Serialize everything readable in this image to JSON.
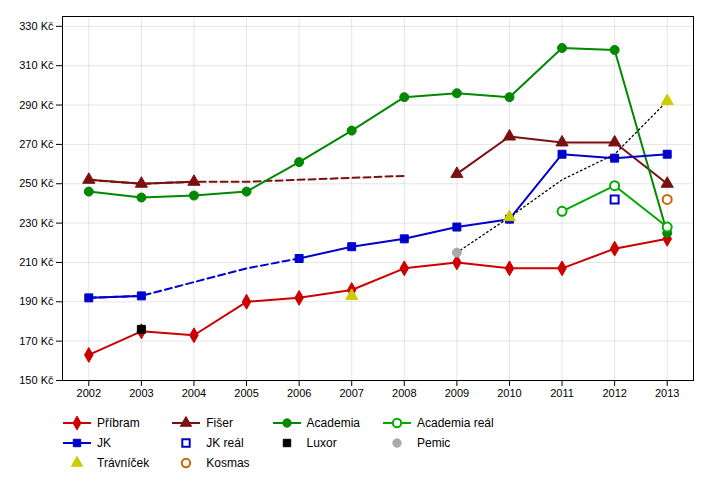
{
  "chart_data": {
    "type": "line",
    "x": [
      2002,
      2003,
      2004,
      2005,
      2006,
      2007,
      2008,
      2009,
      2010,
      2011,
      2012,
      2013
    ],
    "xlim": [
      2001.5,
      2013.5
    ],
    "xticks": [
      2002,
      2003,
      2004,
      2005,
      2006,
      2007,
      2008,
      2009,
      2010,
      2011,
      2012,
      2013
    ],
    "ylim": [
      150,
      335
    ],
    "yticks": [
      {
        "value": 150,
        "label": "150 Kč"
      },
      {
        "value": 170,
        "label": "170 Kč"
      },
      {
        "value": 190,
        "label": "190 Kč"
      },
      {
        "value": 210,
        "label": "210 Kč"
      },
      {
        "value": 230,
        "label": "230 Kč"
      },
      {
        "value": 250,
        "label": "250 Kč"
      },
      {
        "value": 270,
        "label": "270 Kč"
      },
      {
        "value": 290,
        "label": "290 Kč"
      },
      {
        "value": 310,
        "label": "310 Kč"
      },
      {
        "value": 330,
        "label": "330 Kč"
      }
    ],
    "grid": true,
    "legend": "bottom",
    "series": [
      {
        "name": "Příbram",
        "color": "#cc0000",
        "line_style": "solid",
        "marker": "diamond",
        "values": [
          163,
          175,
          173,
          190,
          192,
          196,
          207,
          210,
          207,
          207,
          217,
          222
        ]
      },
      {
        "color": "#7b1010",
        "line_style": "dashed",
        "marker": "none",
        "values": [
          252,
          250,
          251,
          251,
          252,
          253,
          254,
          null,
          null,
          null,
          null,
          null
        ]
      },
      {
        "name": "Fišer",
        "color": "#7b1010",
        "line_style": "solid",
        "marker": "triangle",
        "values": [
          252,
          250,
          251,
          null,
          null,
          null,
          null,
          255,
          274,
          271,
          271,
          250
        ]
      },
      {
        "name": "Academia",
        "color": "#008800",
        "line_style": "solid",
        "marker": "circle",
        "values": [
          246,
          243,
          244,
          246,
          261,
          277,
          294,
          296,
          294,
          319,
          318,
          225
        ]
      },
      {
        "name": "Academia reál",
        "color": "#00aa00",
        "line_style": "solid",
        "marker": "circle-open",
        "values": [
          null,
          null,
          null,
          null,
          null,
          null,
          null,
          null,
          null,
          236,
          249,
          228
        ]
      },
      {
        "color": "#0000cc",
        "line_style": "dashed",
        "marker": "none",
        "values": [
          192,
          193,
          200,
          207,
          212,
          null,
          null,
          null,
          null,
          null,
          null,
          null
        ]
      },
      {
        "name": "JK",
        "color": "#0000cc",
        "line_style": "solid",
        "marker": "square",
        "values": [
          192,
          193,
          null,
          null,
          212,
          218,
          222,
          228,
          232,
          265,
          263,
          265
        ]
      },
      {
        "name": "JK reál",
        "type": "scatter",
        "color": "#0000cc",
        "marker": "square-open",
        "values": [
          null,
          null,
          null,
          null,
          null,
          null,
          null,
          null,
          null,
          null,
          242,
          null
        ]
      },
      {
        "name": "Luxor",
        "type": "scatter",
        "color": "#000000",
        "marker": "square",
        "values": [
          null,
          176,
          null,
          null,
          null,
          null,
          null,
          null,
          null,
          null,
          null,
          null
        ]
      },
      {
        "name": "Pemic",
        "type": "scatter",
        "color": "#aaaaaa",
        "marker": "circle",
        "values": [
          null,
          null,
          null,
          null,
          null,
          null,
          null,
          215,
          null,
          null,
          null,
          null
        ]
      },
      {
        "name": "Trávníček",
        "type": "scatter",
        "color": "#cccc00",
        "marker": "triangle",
        "values": [
          null,
          null,
          null,
          null,
          null,
          193,
          null,
          null,
          233,
          null,
          null,
          292
        ]
      },
      {
        "color": "#000000",
        "line_style": "dotted",
        "marker": "none",
        "values": [
          null,
          null,
          null,
          null,
          null,
          null,
          null,
          215,
          233,
          252,
          265,
          292
        ]
      },
      {
        "name": "Kosmas",
        "type": "scatter",
        "color": "#cc6600",
        "marker": "circle-open",
        "values": [
          null,
          null,
          null,
          null,
          null,
          null,
          null,
          null,
          null,
          null,
          null,
          242
        ]
      }
    ]
  }
}
